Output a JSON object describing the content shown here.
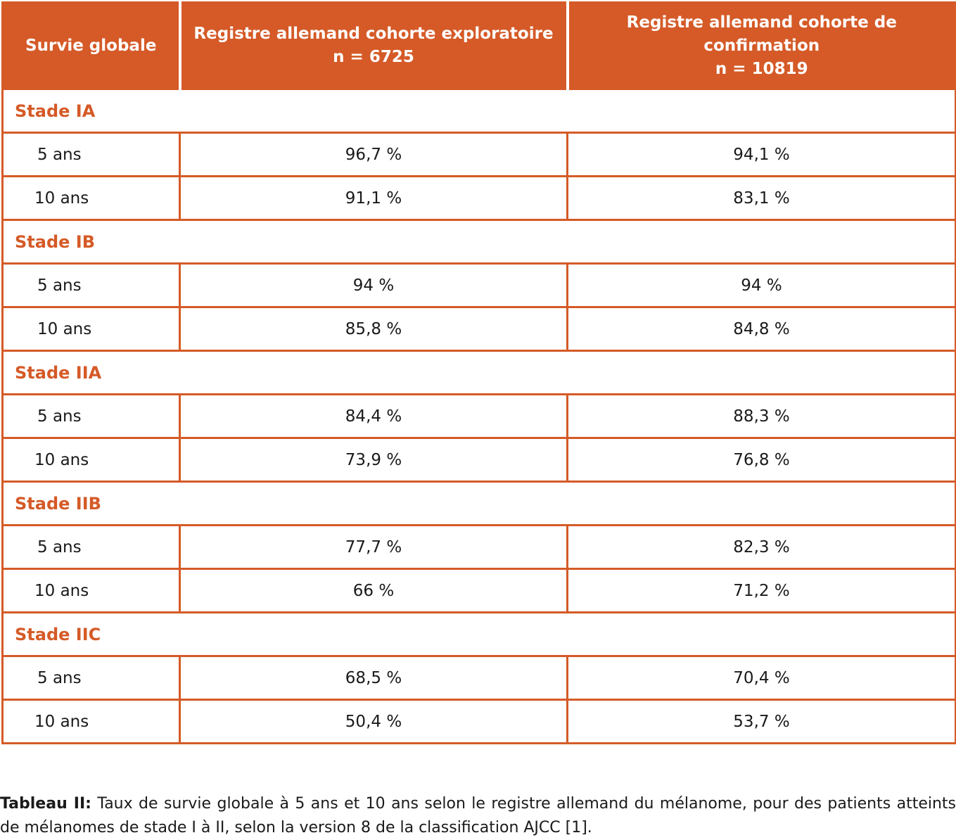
{
  "colors": {
    "accent": "#d55a27",
    "header_text": "#ffffff",
    "body_text": "#1a1a1a"
  },
  "header": {
    "col1": "Survie globale",
    "col2_line1": "Registre allemand cohorte exploratoire",
    "col2_line2": "n = 6725",
    "col3_line1": "Registre allemand cohorte de",
    "col3_line2": "confirmation",
    "col3_line3": "n = 10819"
  },
  "stages": [
    {
      "label": "Stade IA",
      "rows": [
        {
          "period": "5 ans",
          "exploratoire": "96,7 %",
          "confirmation": "94,1 %"
        },
        {
          "period": "10 ans",
          "exploratoire": "91,1 %",
          "confirmation": "83,1 %"
        }
      ]
    },
    {
      "label": "Stade IB",
      "rows": [
        {
          "period": "5 ans",
          "exploratoire": "94 %",
          "confirmation": "94 %"
        },
        {
          "period": "10 ans",
          "exploratoire": "85,8 %",
          "confirmation": "84,8 %"
        }
      ]
    },
    {
      "label": "Stade IIA",
      "rows": [
        {
          "period": "5 ans",
          "exploratoire": "84,4 %",
          "confirmation": "88,3 %"
        },
        {
          "period": "10 ans",
          "exploratoire": "73,9 %",
          "confirmation": "76,8 %"
        }
      ]
    },
    {
      "label": "Stade IIB",
      "rows": [
        {
          "period": "5 ans",
          "exploratoire": "77,7 %",
          "confirmation": "82,3 %"
        },
        {
          "period": "10 ans",
          "exploratoire": "66 %",
          "confirmation": "71,2 %"
        }
      ]
    },
    {
      "label": "Stade IIC",
      "rows": [
        {
          "period": "5 ans",
          "exploratoire": "68,5 %",
          "confirmation": "70,4 %"
        },
        {
          "period": "10 ans",
          "exploratoire": "50,4 %",
          "confirmation": "53,7 %"
        }
      ]
    }
  ],
  "caption": {
    "lead": "Tableau II:",
    "text": " Taux de survie globale à 5 ans et 10 ans selon le registre allemand du mélanome, pour des patients atteints de mélanomes de stade I à II, selon la version 8 de la classification AJCC [1]."
  }
}
